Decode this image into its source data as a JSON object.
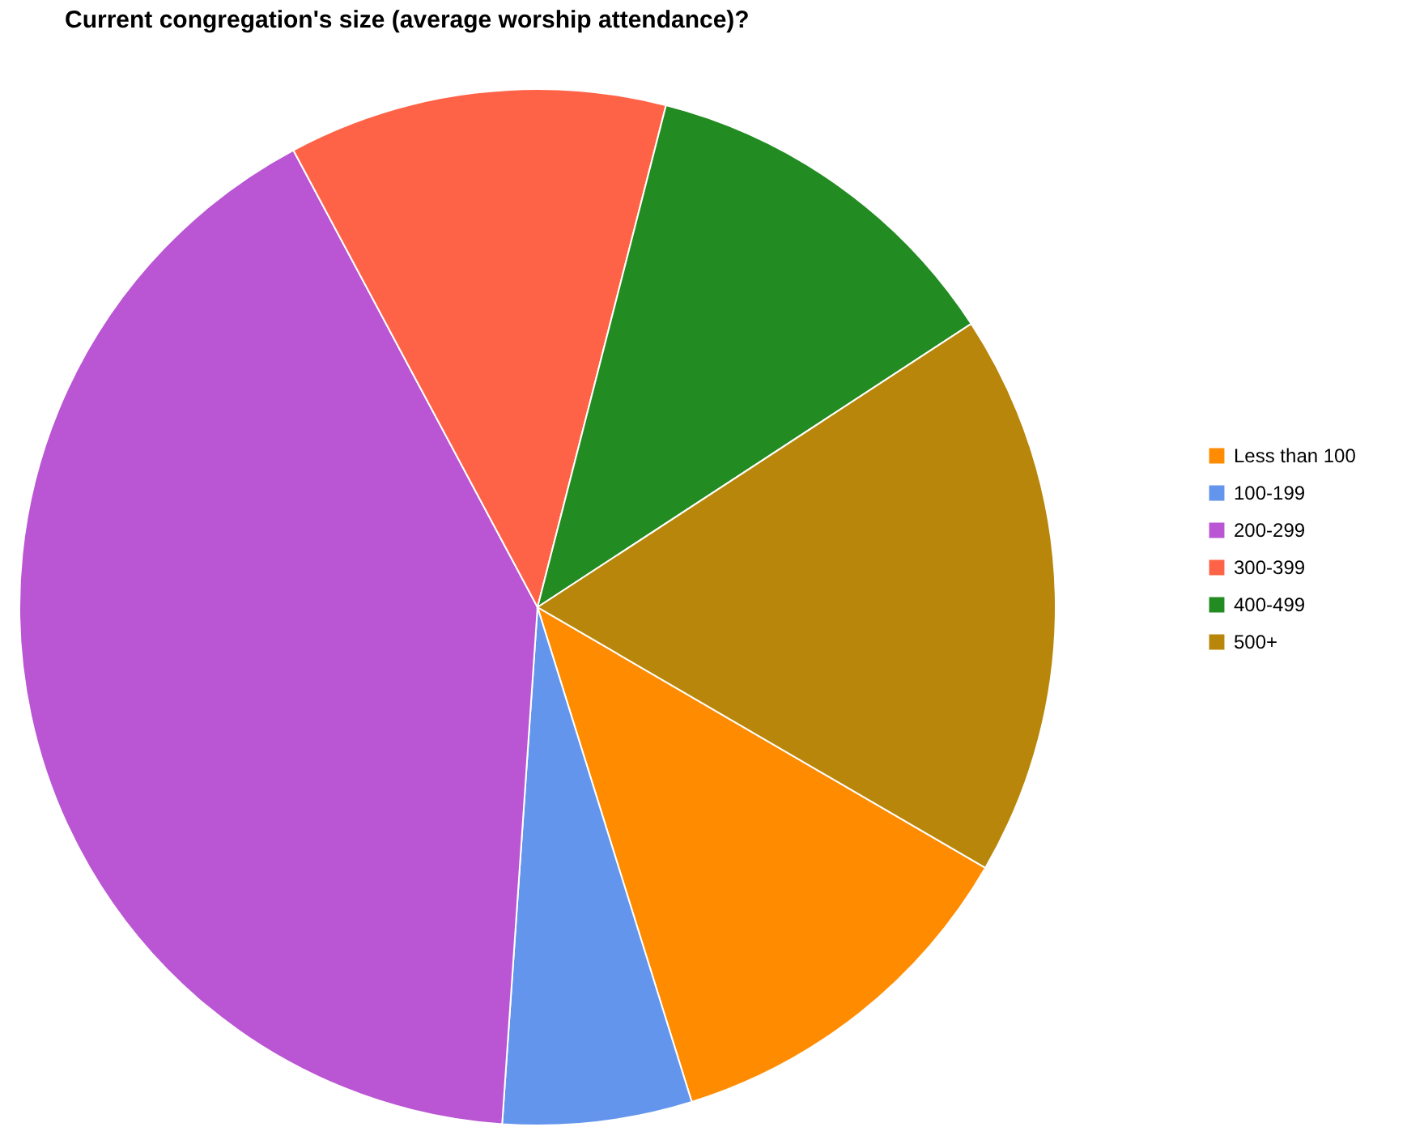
{
  "chart_data": {
    "type": "pie",
    "title": "Current congregation's size (average worship attendance)?",
    "categories": [
      "Less than 100",
      "100-199",
      "200-299",
      "300-399",
      "400-499",
      "500+"
    ],
    "values": [
      11.8,
      5.9,
      41.1,
      11.8,
      11.8,
      17.6
    ],
    "colors": [
      "#ff8c00",
      "#6495ed",
      "#ba55d3",
      "#ff6347",
      "#228b22",
      "#b8860b"
    ],
    "legend": "right"
  }
}
